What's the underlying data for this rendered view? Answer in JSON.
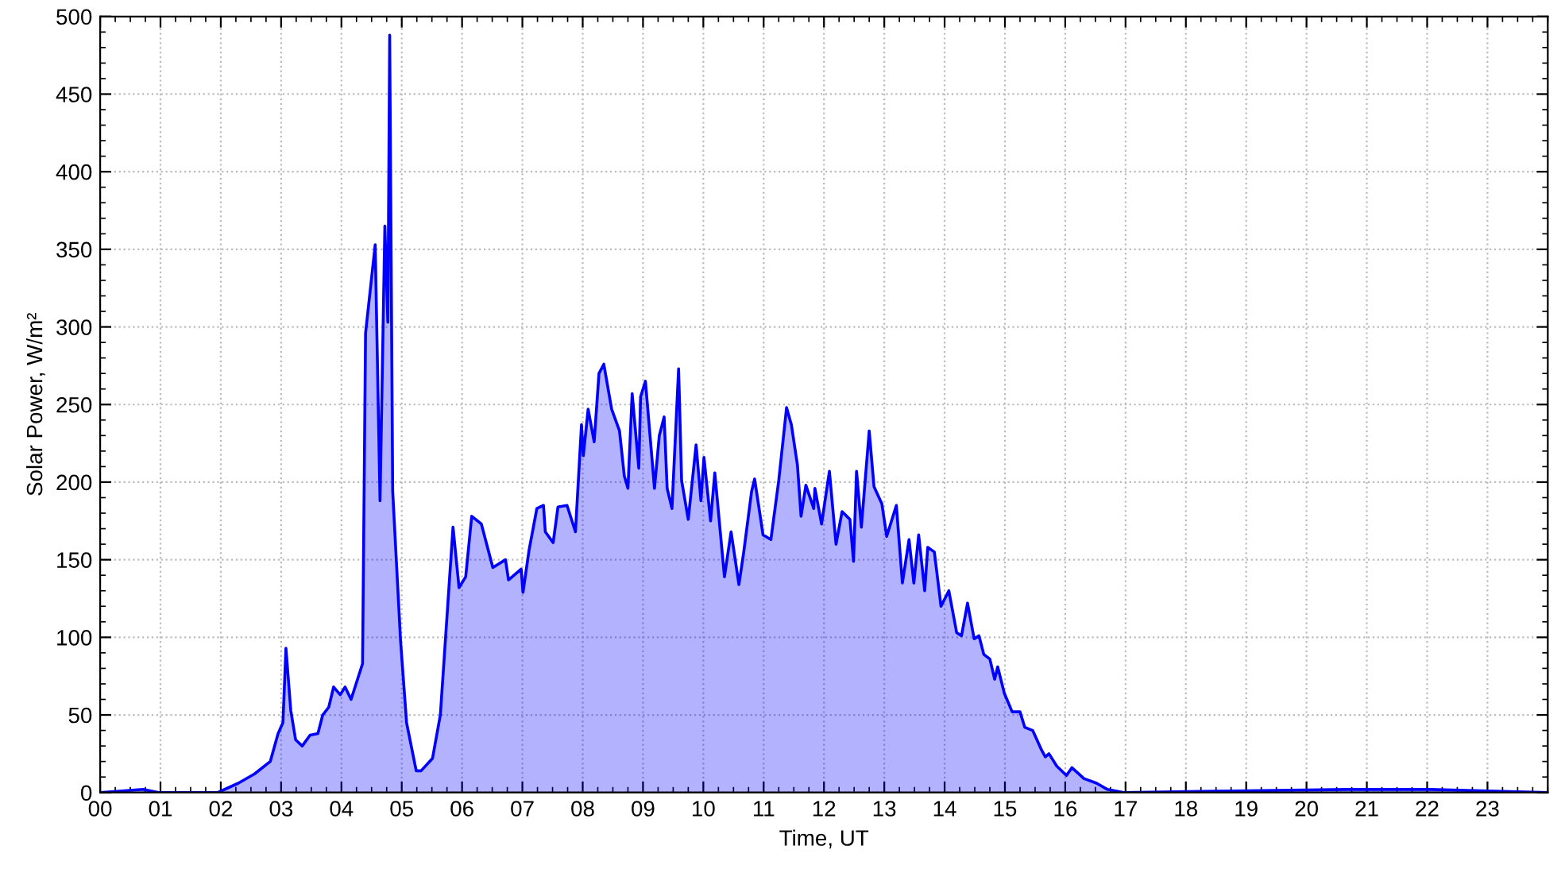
{
  "chart_data": {
    "type": "area",
    "xlabel": "Time, UT",
    "ylabel": "Solar Power, W/m²",
    "xlim": [
      0,
      24
    ],
    "ylim": [
      0,
      500
    ],
    "xticks": [
      {
        "value": 0,
        "label": "00"
      },
      {
        "value": 1,
        "label": "01"
      },
      {
        "value": 2,
        "label": "02"
      },
      {
        "value": 3,
        "label": "03"
      },
      {
        "value": 4,
        "label": "04"
      },
      {
        "value": 5,
        "label": "05"
      },
      {
        "value": 6,
        "label": "06"
      },
      {
        "value": 7,
        "label": "07"
      },
      {
        "value": 8,
        "label": "08"
      },
      {
        "value": 9,
        "label": "09"
      },
      {
        "value": 10,
        "label": "10"
      },
      {
        "value": 11,
        "label": "11"
      },
      {
        "value": 12,
        "label": "12"
      },
      {
        "value": 13,
        "label": "13"
      },
      {
        "value": 14,
        "label": "14"
      },
      {
        "value": 15,
        "label": "15"
      },
      {
        "value": 16,
        "label": "16"
      },
      {
        "value": 17,
        "label": "17"
      },
      {
        "value": 18,
        "label": "18"
      },
      {
        "value": 19,
        "label": "19"
      },
      {
        "value": 20,
        "label": "20"
      },
      {
        "value": 21,
        "label": "21"
      },
      {
        "value": 22,
        "label": "22"
      },
      {
        "value": 23,
        "label": "23"
      }
    ],
    "yticks": [
      0,
      50,
      100,
      150,
      200,
      250,
      300,
      350,
      400,
      450,
      500
    ],
    "grid": true,
    "line_style": "solid",
    "series": [
      {
        "color": "#0000ff",
        "x": [
          0.0,
          0.71,
          0.97,
          1.95,
          2.29,
          2.56,
          2.82,
          2.95,
          3.03,
          3.08,
          3.16,
          3.24,
          3.35,
          3.48,
          3.61,
          3.69,
          3.79,
          3.87,
          3.98,
          4.06,
          4.16,
          4.35,
          4.4,
          4.56,
          4.64,
          4.72,
          4.77,
          4.8,
          4.85,
          4.98,
          5.08,
          5.24,
          5.32,
          5.51,
          5.64,
          5.85,
          5.95,
          6.06,
          6.16,
          6.32,
          6.51,
          6.72,
          6.77,
          6.98,
          7.01,
          7.11,
          7.24,
          7.35,
          7.38,
          7.51,
          7.59,
          7.74,
          7.88,
          7.98,
          8.01,
          8.09,
          8.19,
          8.27,
          8.35,
          8.48,
          8.61,
          8.69,
          8.75,
          8.82,
          8.93,
          8.96,
          9.04,
          9.19,
          9.27,
          9.35,
          9.4,
          9.48,
          9.59,
          9.64,
          9.75,
          9.88,
          9.96,
          10.01,
          10.12,
          10.19,
          10.35,
          10.46,
          10.59,
          10.67,
          10.8,
          10.85,
          10.99,
          11.12,
          11.25,
          11.38,
          11.46,
          11.56,
          11.62,
          11.7,
          11.83,
          11.85,
          11.96,
          12.09,
          12.2,
          12.3,
          12.43,
          12.49,
          12.54,
          12.62,
          12.75,
          12.83,
          12.96,
          13.04,
          13.2,
          13.3,
          13.41,
          13.49,
          13.57,
          13.67,
          13.72,
          13.83,
          13.94,
          14.07,
          14.2,
          14.28,
          14.38,
          14.49,
          14.57,
          14.65,
          14.75,
          14.83,
          14.88,
          14.99,
          15.12,
          15.25,
          15.33,
          15.46,
          15.6,
          15.67,
          15.73,
          15.86,
          16.02,
          16.11,
          16.31,
          16.52,
          16.7,
          16.97,
          18.76,
          20.68,
          22.05,
          24.0
        ],
        "values": [
          0,
          2,
          0,
          0,
          6,
          12,
          20,
          38,
          45,
          93,
          53,
          34,
          30,
          37,
          38,
          50,
          55,
          68,
          63,
          68,
          60,
          83,
          296,
          353,
          188,
          365,
          303,
          488,
          194,
          98,
          45,
          14,
          14,
          22,
          50,
          171,
          132,
          139,
          178,
          173,
          145,
          150,
          137,
          144,
          129,
          156,
          183,
          185,
          168,
          161,
          184,
          185,
          168,
          237,
          217,
          247,
          226,
          270,
          276,
          247,
          233,
          204,
          196,
          257,
          209,
          255,
          265,
          196,
          230,
          242,
          196,
          183,
          273,
          201,
          176,
          224,
          188,
          216,
          175,
          206,
          139,
          168,
          134,
          155,
          194,
          202,
          166,
          163,
          201,
          248,
          237,
          211,
          178,
          198,
          183,
          196,
          173,
          207,
          160,
          181,
          176,
          149,
          207,
          171,
          233,
          197,
          186,
          165,
          185,
          135,
          163,
          135,
          166,
          130,
          158,
          155,
          120,
          130,
          103,
          101,
          122,
          99,
          101,
          89,
          86,
          73,
          81,
          64,
          52,
          52,
          42,
          40,
          28,
          23,
          25,
          17,
          11,
          16,
          9,
          6,
          2,
          0,
          1,
          2,
          2,
          0
        ]
      }
    ]
  }
}
